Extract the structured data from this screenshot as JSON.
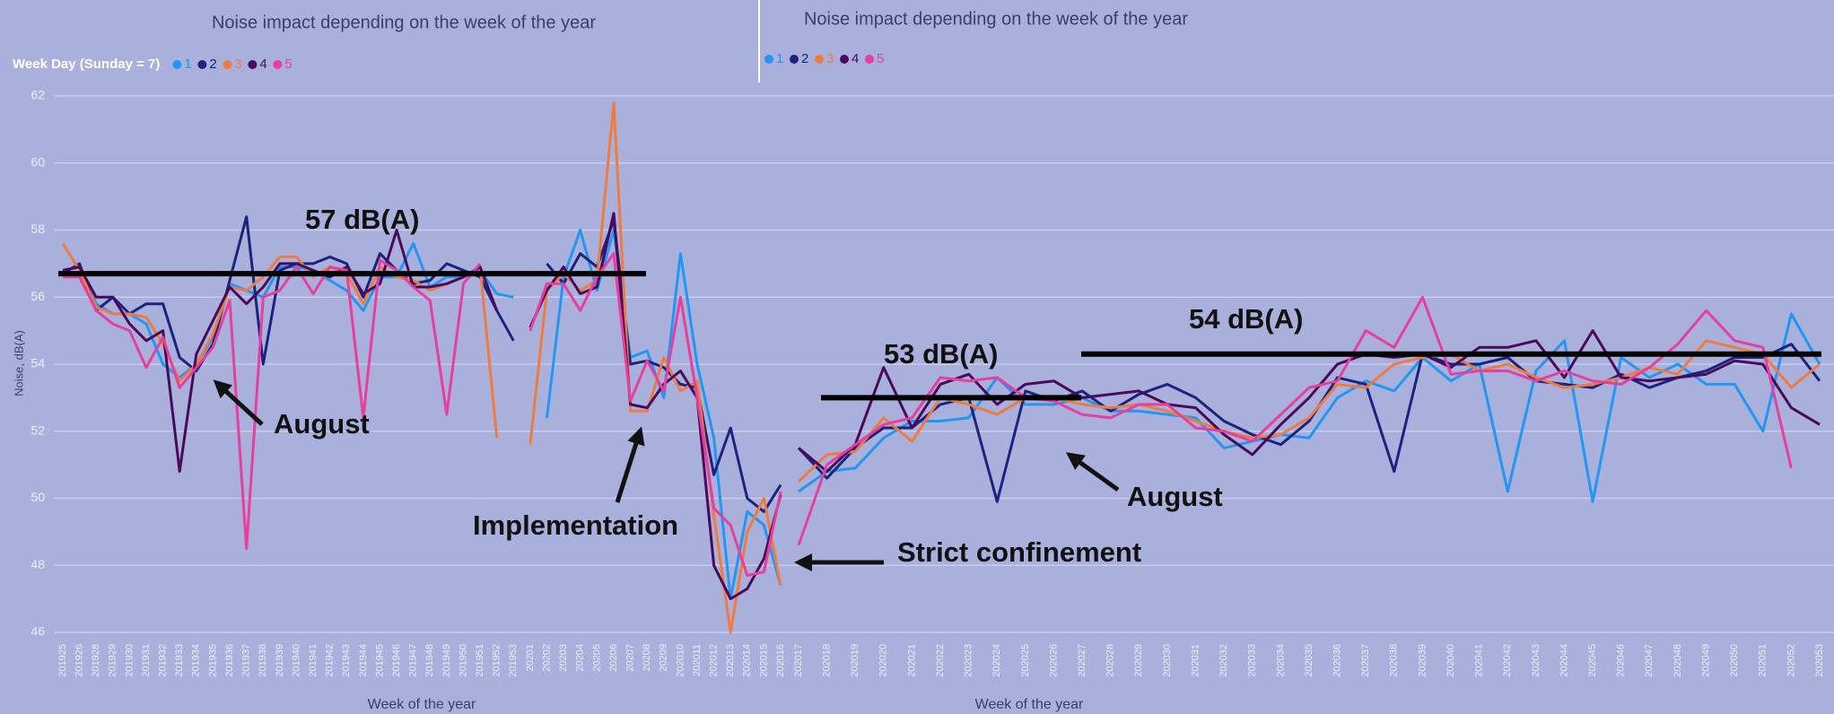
{
  "chart_data": [
    {
      "type": "line",
      "title": "Noise impact depending on the week of the year",
      "legend_title": "Week Day (Sunday = 7)",
      "x_label": "Week of the year",
      "y_label": "Noise, dB(A)",
      "categories": [
        "201925",
        "201926",
        "201928",
        "201929",
        "201930",
        "201931",
        "201932",
        "201933",
        "201934",
        "201935",
        "201936",
        "201937",
        "201938",
        "201939",
        "201940",
        "201941",
        "201942",
        "201943",
        "201944",
        "201945",
        "201946",
        "201947",
        "201948",
        "201949",
        "201950",
        "201951",
        "201952",
        "201953",
        "20201",
        "20202",
        "20203",
        "20204",
        "20205",
        "20206",
        "20207",
        "20208",
        "20209",
        "202010",
        "202011",
        "202012",
        "202013",
        "202014",
        "202015",
        "202016"
      ],
      "ylim": [
        46,
        62
      ],
      "yticks": [
        46,
        48,
        50,
        52,
        54,
        56,
        58,
        60,
        62
      ],
      "grid": true,
      "series": [
        {
          "name": "1",
          "color": "#2196f3",
          "values": [
            56.8,
            56.9,
            55.8,
            55.5,
            55.5,
            55.2,
            54.0,
            53.6,
            54.0,
            54.8,
            56.4,
            56.2,
            56.0,
            56.9,
            56.9,
            56.8,
            56.5,
            56.2,
            55.6,
            56.6,
            56.6,
            57.6,
            56.3,
            56.6,
            56.6,
            56.8,
            56.1,
            56.0,
            null,
            52.4,
            56.6,
            58.0,
            56.2,
            58.0,
            54.2,
            54.4,
            53.0,
            57.3,
            54.0,
            51.8,
            47.0,
            49.6,
            49.2,
            47.4
          ]
        },
        {
          "name": "2",
          "color": "#1a237e",
          "values": [
            56.7,
            57.0,
            55.6,
            56.0,
            55.5,
            55.8,
            55.8,
            54.2,
            53.8,
            54.6,
            56.5,
            58.4,
            54.0,
            56.8,
            57.0,
            57.0,
            57.2,
            57.0,
            56.0,
            57.3,
            56.8,
            56.4,
            56.5,
            57.0,
            56.8,
            56.6,
            55.6,
            54.7,
            null,
            57.0,
            56.4,
            57.3,
            56.9,
            58.3,
            54.0,
            54.1,
            53.9,
            53.4,
            53.3,
            50.7,
            52.1,
            50.0,
            49.6,
            50.4
          ]
        },
        {
          "name": "3",
          "color": "#f07b3f",
          "values": [
            57.6,
            56.8,
            55.7,
            55.5,
            55.5,
            55.4,
            54.6,
            53.5,
            54.0,
            54.9,
            56.3,
            56.2,
            56.6,
            57.2,
            57.2,
            56.6,
            56.9,
            56.7,
            55.8,
            56.9,
            56.6,
            56.5,
            56.2,
            56.4,
            56.6,
            56.9,
            51.8,
            null,
            51.6,
            56.2,
            56.7,
            56.2,
            56.5,
            61.8,
            52.6,
            52.6,
            54.2,
            53.2,
            53.5,
            49.5,
            46.0,
            49.0,
            50.0,
            47.4
          ]
        },
        {
          "name": "4",
          "color": "#4a0a5c",
          "values": [
            56.8,
            56.9,
            56.0,
            56.0,
            55.2,
            54.7,
            55.0,
            50.8,
            54.3,
            55.3,
            56.3,
            55.8,
            56.3,
            57.0,
            57.0,
            56.8,
            56.6,
            56.9,
            56.1,
            56.4,
            58.0,
            56.3,
            56.3,
            56.4,
            56.6,
            56.9,
            55.6,
            null,
            55.1,
            56.2,
            56.9,
            56.1,
            56.3,
            58.5,
            52.8,
            52.7,
            53.4,
            53.8,
            53.0,
            48.0,
            47.0,
            47.3,
            48.2,
            50.1
          ]
        },
        {
          "name": "5",
          "color": "#e83e9c",
          "values": [
            56.6,
            56.6,
            55.6,
            55.2,
            55.0,
            53.9,
            54.8,
            53.3,
            53.9,
            54.5,
            55.9,
            48.5,
            56.0,
            56.2,
            56.9,
            56.1,
            56.9,
            56.8,
            52.4,
            57.1,
            56.8,
            56.3,
            55.9,
            52.5,
            56.4,
            57.0,
            null,
            null,
            55.0,
            56.4,
            56.4,
            55.6,
            56.6,
            57.3,
            52.9,
            54.1,
            53.2,
            56.0,
            53.0,
            49.7,
            49.2,
            47.7,
            47.8,
            50.2
          ]
        }
      ],
      "levels": [
        {
          "label": "57 dB(A)",
          "value": 56.7
        }
      ],
      "notes": [
        "August",
        "Implementation"
      ]
    },
    {
      "type": "line",
      "title": "Noise impact depending on the week of the year",
      "x_label": "Week of the year",
      "categories": [
        "202017",
        "202018",
        "202019",
        "202020",
        "202021",
        "202022",
        "202023",
        "202024",
        "202025",
        "202026",
        "202027",
        "202028",
        "202029",
        "202030",
        "202031",
        "202032",
        "202033",
        "202034",
        "202035",
        "202036",
        "202037",
        "202038",
        "202039",
        "202040",
        "202041",
        "202042",
        "202043",
        "202044",
        "202045",
        "202046",
        "202047",
        "202048",
        "202049",
        "202050",
        "202051",
        "202052",
        "202053"
      ],
      "ylim": [
        46,
        62
      ],
      "series": [
        {
          "name": "1",
          "color": "#2196f3",
          "values": [
            50.2,
            50.8,
            50.9,
            51.8,
            52.3,
            52.3,
            52.4,
            53.6,
            52.8,
            52.8,
            53.0,
            52.6,
            52.6,
            52.5,
            52.4,
            51.5,
            51.7,
            51.9,
            51.8,
            53.0,
            53.5,
            53.2,
            54.2,
            53.5,
            54.0,
            50.2,
            53.8,
            54.7,
            49.9,
            54.2,
            53.6,
            54.0,
            53.4,
            53.4,
            52.0,
            55.5,
            54.0
          ]
        },
        {
          "name": "2",
          "color": "#1a237e",
          "values": [
            51.5,
            50.6,
            51.5,
            52.1,
            52.1,
            52.8,
            53.0,
            49.9,
            53.2,
            52.9,
            53.2,
            52.6,
            53.1,
            53.4,
            53.0,
            52.3,
            51.9,
            51.6,
            52.3,
            53.6,
            53.4,
            50.8,
            54.3,
            54.0,
            54.0,
            54.2,
            53.5,
            53.4,
            53.3,
            53.7,
            53.3,
            53.6,
            53.8,
            54.2,
            54.2,
            54.6,
            53.5
          ]
        },
        {
          "name": "3",
          "color": "#f07b3f",
          "values": [
            50.5,
            51.3,
            51.4,
            52.4,
            51.7,
            53.0,
            52.8,
            52.5,
            53.0,
            53.0,
            52.8,
            52.7,
            52.8,
            52.6,
            52.3,
            52.0,
            51.8,
            51.9,
            52.4,
            53.4,
            53.3,
            54.0,
            54.2,
            54.3,
            53.8,
            54.0,
            53.6,
            53.3,
            53.4,
            53.6,
            53.9,
            53.7,
            54.7,
            54.5,
            54.3,
            53.3,
            54.0
          ]
        },
        {
          "name": "4",
          "color": "#4a0a5c",
          "values": [
            51.5,
            50.8,
            51.6,
            53.9,
            52.1,
            53.4,
            53.7,
            52.8,
            53.4,
            53.5,
            53.0,
            53.1,
            53.2,
            52.8,
            52.7,
            51.9,
            51.3,
            52.2,
            53.0,
            54.0,
            54.3,
            54.2,
            54.3,
            53.9,
            54.5,
            54.5,
            54.7,
            53.6,
            55.0,
            53.6,
            53.5,
            53.6,
            53.7,
            54.1,
            54.0,
            52.7,
            52.2
          ]
        },
        {
          "name": "5",
          "color": "#e83e9c",
          "values": [
            48.6,
            51.0,
            51.6,
            52.2,
            52.4,
            53.6,
            53.5,
            53.6,
            53.0,
            52.9,
            52.5,
            52.4,
            52.8,
            52.8,
            52.1,
            52.0,
            51.7,
            52.5,
            53.3,
            53.5,
            55.0,
            54.5,
            56.0,
            53.7,
            53.8,
            53.8,
            53.5,
            53.8,
            53.5,
            53.4,
            53.9,
            54.6,
            55.6,
            54.7,
            54.5,
            50.9,
            null
          ]
        }
      ],
      "levels": [
        {
          "label": "53 dB(A)",
          "value": 53.0
        },
        {
          "label": "54 dB(A)",
          "value": 54.3
        }
      ],
      "notes": [
        "Strict confinement",
        "August"
      ]
    }
  ]
}
